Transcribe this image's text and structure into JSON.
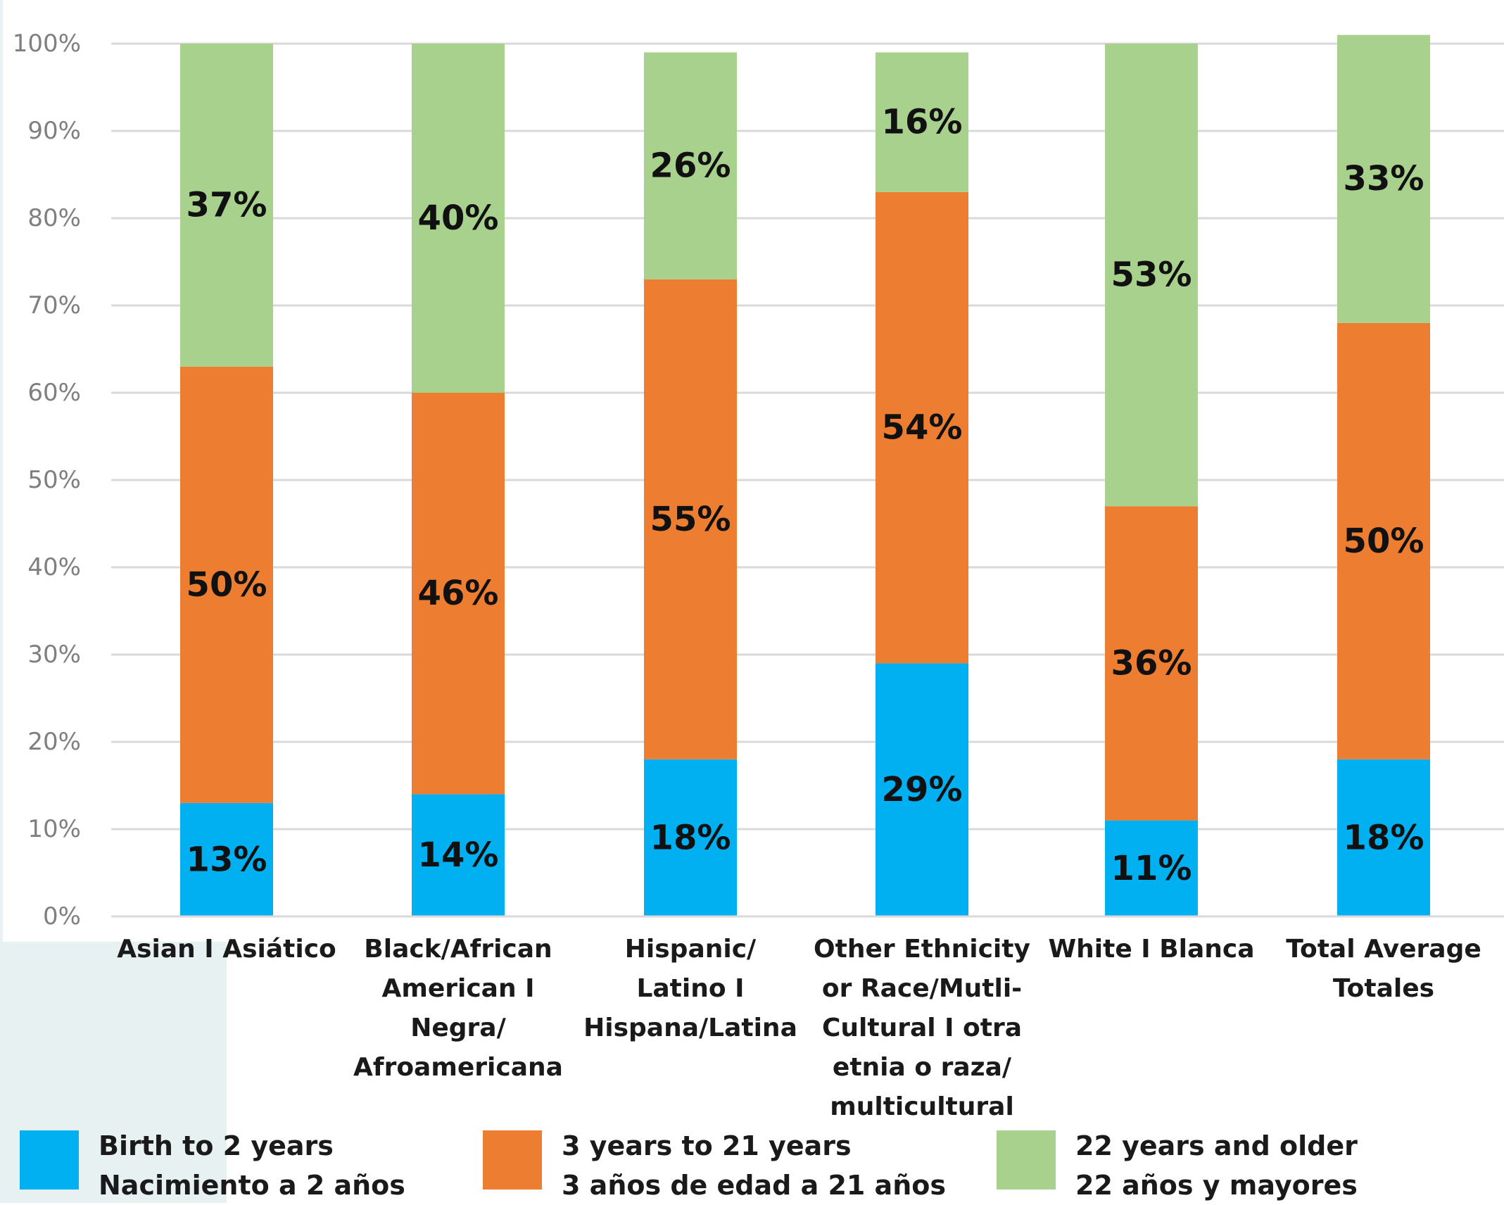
{
  "chart_data": {
    "type": "bar",
    "stacked": true,
    "title": "",
    "xlabel": "",
    "ylabel": "",
    "ylim": [
      0,
      100
    ],
    "y_ticks": [
      "0%",
      "10%",
      "20%",
      "30%",
      "40%",
      "50%",
      "60%",
      "70%",
      "80%",
      "90%",
      "100%"
    ],
    "grid": true,
    "legend_position": "bottom",
    "categories": [
      [
        "Asian I Asiático"
      ],
      [
        "Black/African",
        "American I",
        "Negra/",
        "Afroamericana"
      ],
      [
        "Hispanic/",
        "Latino I",
        "Hispana/Latina"
      ],
      [
        "Other Ethnicity",
        "or Race/Mutli-",
        "Cultural I otra",
        "etnia o raza/",
        "multicultural"
      ],
      [
        "White I Blanca"
      ],
      [
        "Total Average",
        "Totales"
      ]
    ],
    "series": [
      {
        "name": [
          "Birth to 2 years",
          "Nacimiento a 2 años"
        ],
        "color": "#00b0f0",
        "values": [
          13,
          14,
          18,
          29,
          11,
          18
        ],
        "labels": [
          "13%",
          "14%",
          "18%",
          "29%",
          "11%",
          "18%"
        ]
      },
      {
        "name": [
          "3 years to 21 years",
          "3 años de edad a 21 años"
        ],
        "color": "#ed7d31",
        "values": [
          50,
          46,
          55,
          54,
          36,
          50
        ],
        "labels": [
          "50%",
          "46%",
          "55%",
          "54%",
          "36%",
          "50%"
        ]
      },
      {
        "name": [
          "22 years and older",
          "22 años y mayores"
        ],
        "color": "#a9d18e",
        "values": [
          37,
          40,
          26,
          16,
          53,
          33
        ],
        "labels": [
          "37%",
          "40%",
          "26%",
          "16%",
          "53%",
          "33%"
        ]
      }
    ]
  }
}
